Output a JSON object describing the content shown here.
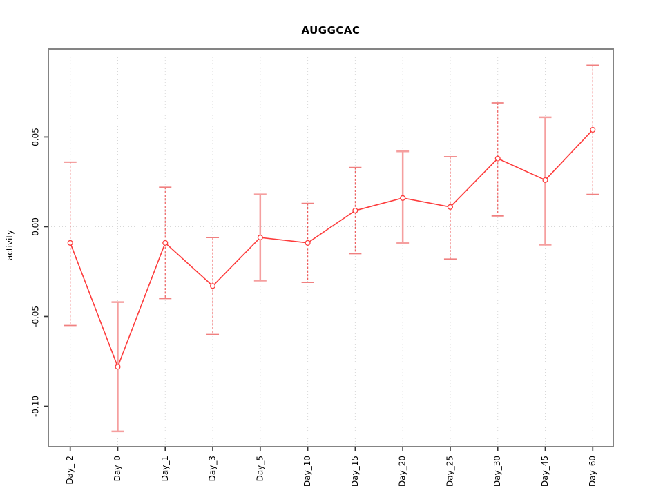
{
  "chart_data": {
    "type": "line",
    "title": "AUGGCAC",
    "xlabel": "",
    "ylabel": "activity",
    "legend": "none",
    "categories": [
      "Day_-2",
      "Day_0",
      "Day_1",
      "Day_3",
      "Day_5",
      "Day_10",
      "Day_15",
      "Day_20",
      "Day_25",
      "Day_30",
      "Day_45",
      "Day_60"
    ],
    "series": [
      {
        "name": "activity",
        "values": [
          -0.009,
          -0.078,
          -0.009,
          -0.033,
          -0.006,
          -0.009,
          0.009,
          0.016,
          0.011,
          0.038,
          0.026,
          0.054
        ],
        "lower": [
          -0.055,
          -0.114,
          -0.04,
          -0.06,
          -0.03,
          -0.031,
          -0.015,
          -0.009,
          -0.018,
          0.006,
          -0.01,
          0.018
        ],
        "upper": [
          0.036,
          -0.042,
          0.022,
          -0.006,
          0.018,
          0.013,
          0.033,
          0.042,
          0.039,
          0.069,
          0.061,
          0.09
        ],
        "bar_styles": [
          "dashed",
          "solid",
          "dashed",
          "dashed",
          "solid",
          "dashed",
          "dashed",
          "solid",
          "dashed",
          "dashed",
          "solid",
          "dashed"
        ]
      }
    ],
    "yticks": [
      0.05,
      0.0,
      -0.05,
      -0.1
    ],
    "ytick_labels": [
      "0.05",
      "0.00",
      "-0.05",
      "-0.10"
    ],
    "ylim": [
      -0.1225,
      0.099
    ],
    "grid": {
      "vertical": true,
      "horizontal_at_zero": true
    },
    "colors": {
      "line": "#fd3c3c",
      "point": "#fd3c3c",
      "error_bar_solid": "#f59f9f",
      "error_bar_dashed": "#ee5d5d",
      "error_cap_solid": "#f59f9f",
      "error_cap_dashed": "#f08080",
      "grid": "#d8d8d8",
      "frame": "#848484",
      "tick": "#333333",
      "text": "#000000"
    }
  }
}
